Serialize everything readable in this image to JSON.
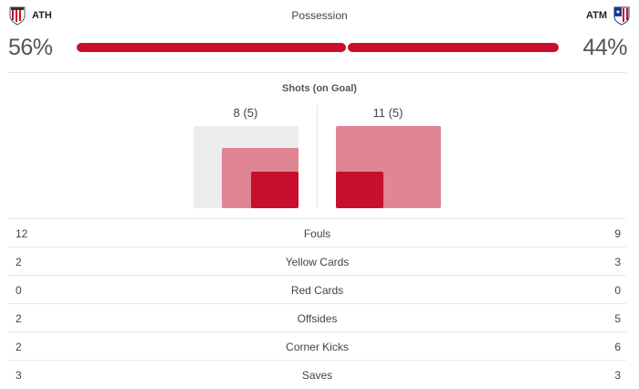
{
  "teams": {
    "home": {
      "abbr": "ATH",
      "crest_colors": [
        "#c8102e",
        "#ffffff",
        "#333333"
      ]
    },
    "away": {
      "abbr": "ATM",
      "crest_colors": [
        "#c8102e",
        "#ffffff",
        "#1b3a8c"
      ]
    }
  },
  "possession": {
    "title": "Possession",
    "home_pct": "56%",
    "away_pct": "44%",
    "home_value": 56,
    "away_value": 44,
    "bar_color": "#c8102e"
  },
  "shots": {
    "title": "Shots (on Goal)",
    "home_label": "8 (5)",
    "away_label": "11 (5)",
    "home": {
      "shots": 8,
      "on_goal": 5
    },
    "away": {
      "shots": 11,
      "on_goal": 5
    },
    "colors": {
      "goal": "#ededee",
      "shots": "#df8593",
      "on_goal": "#c8102e"
    }
  },
  "stats": [
    {
      "label": "Fouls",
      "home": "12",
      "away": "9"
    },
    {
      "label": "Yellow Cards",
      "home": "2",
      "away": "3"
    },
    {
      "label": "Red Cards",
      "home": "0",
      "away": "0"
    },
    {
      "label": "Offsides",
      "home": "2",
      "away": "5"
    },
    {
      "label": "Corner Kicks",
      "home": "2",
      "away": "6"
    },
    {
      "label": "Saves",
      "home": "3",
      "away": "3"
    }
  ]
}
